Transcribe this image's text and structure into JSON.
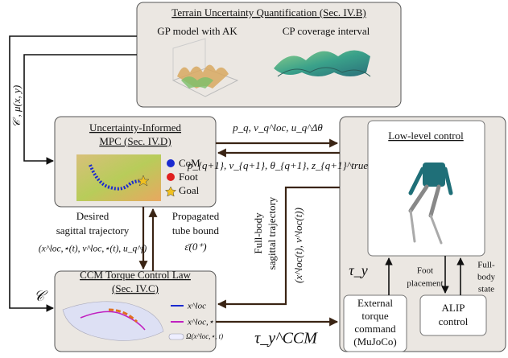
{
  "terrain": {
    "title": "Terrain Uncertainty Quantification (Sec. IV.B)",
    "gp_label": "GP model with AK",
    "cp_label": "CP coverage interval"
  },
  "mpc": {
    "title": [
      "Uncertainty-Informed",
      "MPC (Sec. IV.D)"
    ],
    "legend": [
      "CoM",
      "Foot",
      "Goal"
    ]
  },
  "ccm": {
    "title": [
      "CCM Torque Control Law",
      "(Sec. IV.C)"
    ],
    "legend": [
      "x^loc",
      "x^loc,⋆",
      "Ω(x^loc,⋆, t)"
    ]
  },
  "low_level": {
    "title": "Low-level control"
  },
  "external": {
    "lines": [
      "External",
      "torque",
      "command",
      "(MuJoCo)"
    ]
  },
  "alip": {
    "lines": [
      "ALIP",
      "control"
    ]
  },
  "edges": {
    "terrain_to_mpc": "𝒞 ,  μ(x, y)",
    "terrain_to_ccm": "𝒞",
    "mpc_to_low": "p_q, v_q^loc, u_q^Δθ",
    "low_to_mpc": "p_{q+1}, v_{q+1}, θ_{q+1}, z_{q+1}^true",
    "desired": [
      "Desired",
      "sagittal trajectory",
      "(x^loc,⋆(t), v^loc,⋆(t), u_q^f)"
    ],
    "propagated": [
      "Propagated",
      "tube bound",
      "ε̄(0⁺)"
    ],
    "full_body_traj": [
      "Full-body",
      "sagittal trajectory",
      "(x^loc(t), v^loc(t))"
    ],
    "tau_ccm": "τ_y^CCM",
    "tau_y": "τ_y",
    "foot_placement": [
      "Foot",
      "placement"
    ],
    "full_body_state": [
      "Full-",
      "body",
      "state"
    ]
  }
}
